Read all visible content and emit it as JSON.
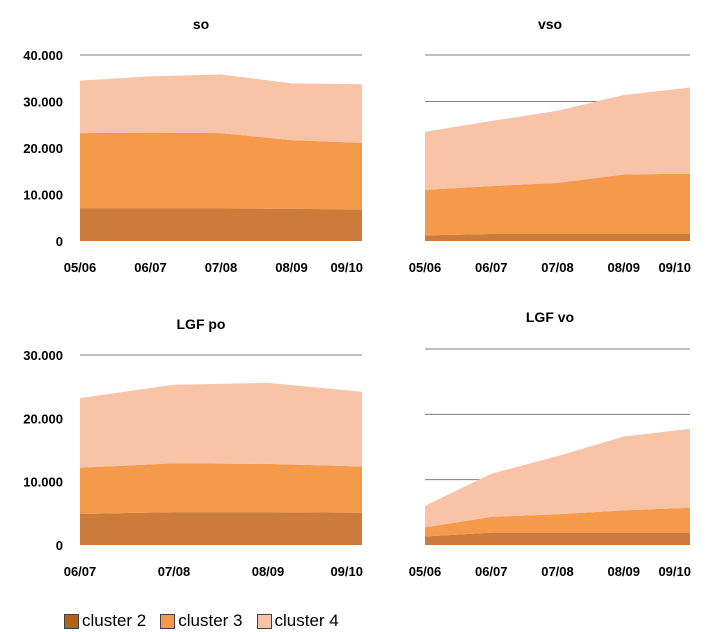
{
  "chart_data": [
    {
      "type": "area",
      "stacked": true,
      "title": "so",
      "x": [
        "05/06",
        "06/07",
        "07/08",
        "08/09",
        "09/10"
      ],
      "ylim": [
        0,
        40000
      ],
      "yticks": [
        "0",
        "10.000",
        "20.000",
        "30.000",
        "40.000"
      ],
      "show_y_labels": true,
      "series": [
        {
          "name": "cluster 2",
          "values": [
            7000,
            7000,
            7000,
            6900,
            6800
          ]
        },
        {
          "name": "cluster 3",
          "values": [
            16200,
            16300,
            16200,
            14800,
            14300
          ]
        },
        {
          "name": "cluster 4",
          "values": [
            11300,
            12100,
            12600,
            12200,
            12600
          ]
        }
      ]
    },
    {
      "type": "area",
      "stacked": true,
      "title": "vso",
      "x": [
        "05/06",
        "06/07",
        "07/08",
        "08/09",
        "09/10"
      ],
      "ylim": [
        0,
        40000
      ],
      "yticks": [
        "0",
        "10.000",
        "20.000",
        "30.000",
        "40.000"
      ],
      "show_y_labels": false,
      "series": [
        {
          "name": "cluster 2",
          "values": [
            1200,
            1500,
            1500,
            1500,
            1500
          ]
        },
        {
          "name": "cluster 3",
          "values": [
            9800,
            10300,
            11000,
            12800,
            13000
          ]
        },
        {
          "name": "cluster 4",
          "values": [
            12500,
            14000,
            15500,
            17100,
            18500
          ]
        }
      ]
    },
    {
      "type": "area",
      "stacked": true,
      "title": "LGF po",
      "x": [
        "06/07",
        "07/08",
        "08/09",
        "09/10"
      ],
      "ylim": [
        0,
        30000
      ],
      "yticks": [
        "0",
        "10.000",
        "20.000",
        "30.000"
      ],
      "show_y_labels": true,
      "series": [
        {
          "name": "cluster 2",
          "values": [
            4900,
            5200,
            5200,
            5100
          ]
        },
        {
          "name": "cluster 3",
          "values": [
            7300,
            7700,
            7600,
            7300
          ]
        },
        {
          "name": "cluster 4",
          "values": [
            11000,
            12400,
            12800,
            11800
          ]
        }
      ]
    },
    {
      "type": "area",
      "stacked": true,
      "title": "LGF vo",
      "x": [
        "05/06",
        "06/07",
        "07/08",
        "08/09",
        "09/10"
      ],
      "ylim": [
        0,
        30000
      ],
      "yticks": [
        "0",
        "10.000",
        "20.000",
        "30.000"
      ],
      "show_y_labels": false,
      "series": [
        {
          "name": "cluster 2",
          "values": [
            1300,
            1900,
            1900,
            1900,
            1900
          ]
        },
        {
          "name": "cluster 3",
          "values": [
            1400,
            2400,
            2800,
            3400,
            3800
          ]
        },
        {
          "name": "cluster 4",
          "values": [
            3300,
            6600,
            8900,
            11300,
            12100
          ]
        }
      ]
    }
  ],
  "colors": {
    "cluster 2": "#cc7c3a",
    "cluster 3": "#f5994a",
    "cluster 4": "#f8c3a6",
    "gridline": "#7f7f7f",
    "legend_cluster_2": "#b06315"
  },
  "legend": [
    "cluster 2",
    "cluster 3",
    "cluster 4"
  ]
}
